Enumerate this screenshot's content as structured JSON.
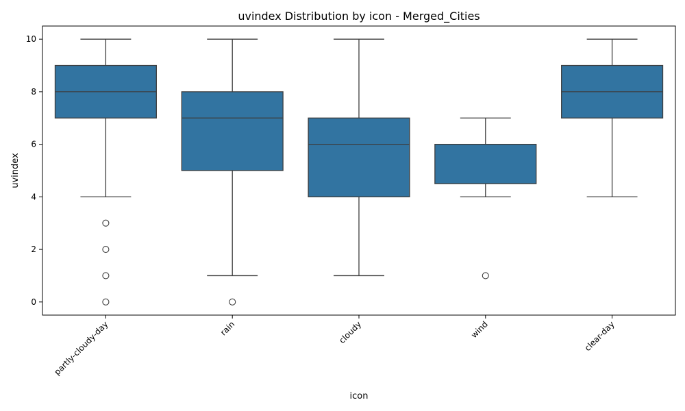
{
  "chart_data": {
    "type": "boxplot",
    "title": "uvindex Distribution by icon - Merged_Cities",
    "xlabel": "icon",
    "ylabel": "uvindex",
    "ylim": [
      -0.5,
      10.5
    ],
    "yticks": [
      0,
      2,
      4,
      6,
      8,
      10
    ],
    "categories": [
      "partly-cloudy-day",
      "rain",
      "cloudy",
      "wind",
      "clear-day"
    ],
    "x_tick_rotation_deg": 45,
    "box_color": "#3274a1",
    "line_color": "#3d3d3d",
    "grid": false,
    "legend": "none",
    "boxes": [
      {
        "category": "partly-cloudy-day",
        "whisker_low": 4,
        "q1": 7,
        "median": 8,
        "q3": 9,
        "whisker_high": 10,
        "outliers": [
          3,
          2,
          1,
          0
        ]
      },
      {
        "category": "rain",
        "whisker_low": 1,
        "q1": 5,
        "median": 7,
        "q3": 8,
        "whisker_high": 10,
        "outliers": [
          0
        ]
      },
      {
        "category": "cloudy",
        "whisker_low": 1,
        "q1": 4,
        "median": 6,
        "q3": 7,
        "whisker_high": 10,
        "outliers": []
      },
      {
        "category": "wind",
        "whisker_low": 4,
        "q1": 4.5,
        "median": 6,
        "q3": 6,
        "whisker_high": 7,
        "outliers": [
          1
        ]
      },
      {
        "category": "clear-day",
        "whisker_low": 4,
        "q1": 7,
        "median": 8,
        "q3": 9,
        "whisker_high": 10,
        "outliers": []
      }
    ]
  }
}
